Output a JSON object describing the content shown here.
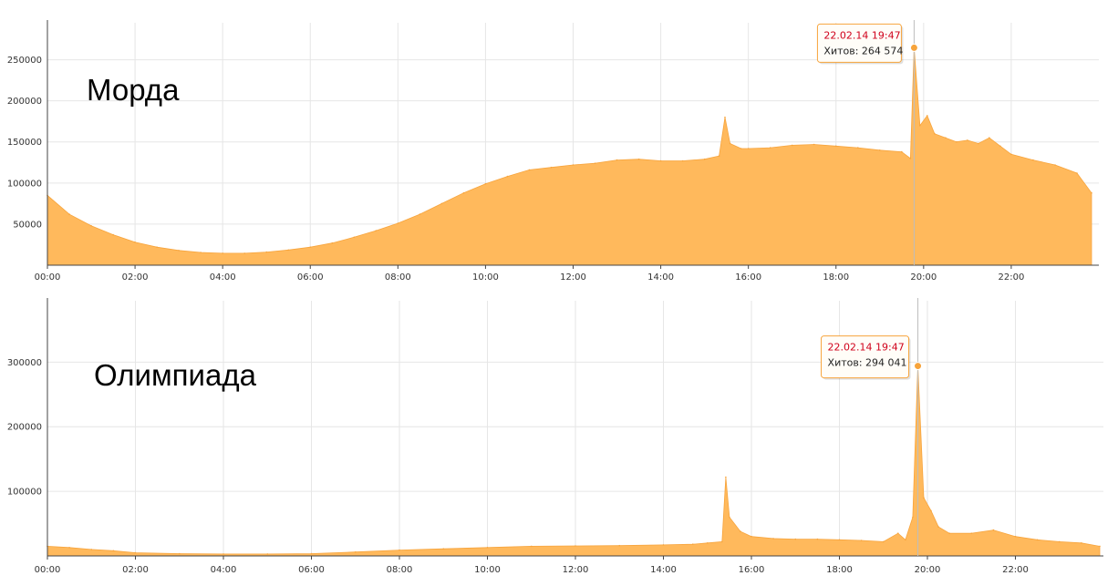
{
  "chart_data": [
    {
      "type": "area",
      "title": "Морда",
      "xlabel": "",
      "ylabel": "",
      "color": "#ffb95c",
      "grid": true,
      "x_ticks": [
        "00:00",
        "02:00",
        "04:00",
        "06:00",
        "08:00",
        "10:00",
        "12:00",
        "14:00",
        "16:00",
        "18:00",
        "20:00",
        "22:00"
      ],
      "y_ticks": [
        50000,
        100000,
        150000,
        200000,
        250000
      ],
      "xlim": [
        "00:00",
        "24:00"
      ],
      "ylim": [
        0,
        295000
      ],
      "x": [
        "00:00",
        "00:30",
        "01:00",
        "01:30",
        "02:00",
        "02:30",
        "03:00",
        "03:30",
        "04:00",
        "04:30",
        "05:00",
        "05:30",
        "06:00",
        "06:30",
        "07:00",
        "07:30",
        "08:00",
        "08:30",
        "09:00",
        "09:30",
        "10:00",
        "10:30",
        "11:00",
        "11:30",
        "12:00",
        "12:30",
        "13:00",
        "13:30",
        "14:00",
        "14:30",
        "15:00",
        "15:20",
        "15:28",
        "15:35",
        "15:50",
        "16:00",
        "16:30",
        "17:00",
        "17:30",
        "18:00",
        "18:30",
        "19:00",
        "19:30",
        "19:42",
        "19:47",
        "19:55",
        "20:05",
        "20:15",
        "20:30",
        "20:45",
        "21:00",
        "21:15",
        "21:30",
        "21:45",
        "22:00",
        "22:30",
        "23:00",
        "23:30",
        "23:50"
      ],
      "values": [
        85000,
        62000,
        48000,
        37000,
        28000,
        22000,
        18000,
        15500,
        14500,
        14500,
        16000,
        18500,
        22000,
        27000,
        34000,
        42000,
        51000,
        62000,
        75000,
        88000,
        99000,
        108000,
        116000,
        119000,
        122000,
        124000,
        128000,
        129000,
        127000,
        127000,
        129000,
        133000,
        180000,
        148000,
        142000,
        142000,
        143000,
        146000,
        147000,
        145000,
        143000,
        140000,
        138000,
        130000,
        264574,
        170000,
        182000,
        160000,
        155000,
        150000,
        152000,
        148000,
        155000,
        145000,
        135000,
        128000,
        122000,
        112000,
        88000
      ],
      "tooltip": {
        "date": "22.02.14 19:47",
        "hits": "Хитов: 264 574"
      }
    },
    {
      "type": "area",
      "title": "Олимпиада",
      "xlabel": "",
      "ylabel": "",
      "color": "#ffb95c",
      "grid": true,
      "x_ticks": [
        "00:00",
        "02:00",
        "04:00",
        "06:00",
        "08:00",
        "10:00",
        "12:00",
        "14:00",
        "16:00",
        "18:00",
        "20:00",
        "22:00"
      ],
      "y_ticks": [
        100000,
        200000,
        300000
      ],
      "xlim": [
        "00:00",
        "24:00"
      ],
      "ylim": [
        0,
        395000
      ],
      "x": [
        "00:00",
        "00:30",
        "01:00",
        "01:30",
        "02:00",
        "03:00",
        "04:00",
        "05:00",
        "06:00",
        "07:00",
        "08:00",
        "09:00",
        "10:00",
        "11:00",
        "12:00",
        "13:00",
        "14:00",
        "14:40",
        "15:00",
        "15:20",
        "15:25",
        "15:30",
        "15:45",
        "16:00",
        "16:30",
        "17:00",
        "17:30",
        "18:00",
        "18:30",
        "19:00",
        "19:20",
        "19:30",
        "19:40",
        "19:47",
        "19:55",
        "20:05",
        "20:15",
        "20:30",
        "21:00",
        "21:30",
        "22:00",
        "22:30",
        "23:00",
        "23:30",
        "23:55"
      ],
      "values": [
        15000,
        13000,
        10000,
        8000,
        5000,
        3500,
        3000,
        3000,
        3500,
        6000,
        9000,
        11000,
        13000,
        15000,
        15500,
        16000,
        17000,
        18000,
        20000,
        22000,
        122000,
        60000,
        38000,
        30000,
        27000,
        26000,
        26000,
        25000,
        24000,
        22000,
        35000,
        25000,
        60000,
        294041,
        90000,
        70000,
        45000,
        35000,
        35000,
        40000,
        30000,
        25000,
        22000,
        20000,
        15000
      ],
      "tooltip": {
        "date": "22.02.14 19:47",
        "hits": "Хитов: 294 041"
      }
    }
  ]
}
